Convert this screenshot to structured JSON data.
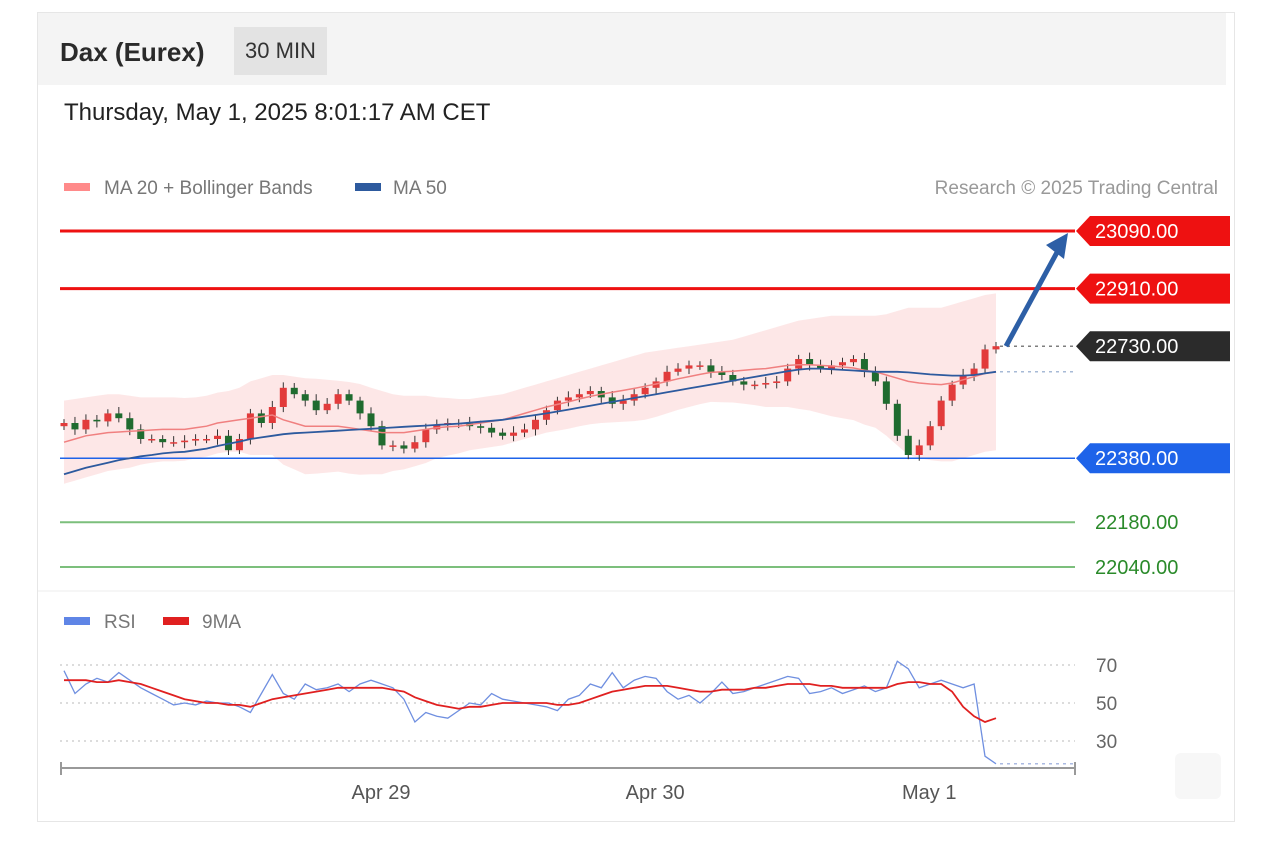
{
  "header": {
    "title": "Dax (Eurex)",
    "interval": "30 MIN"
  },
  "timestamp": "Thursday, May 1, 2025 8:01:17 AM CET",
  "legend": {
    "ma20": "MA 20 + Bollinger Bands",
    "ma50": "MA 50",
    "rsi": "RSI",
    "rsi_ma": "9MA",
    "credit": "Research © 2025 Trading Central"
  },
  "colors": {
    "resistance": "#ee1111",
    "current": "#2b2b2b",
    "pivot": "#1e63e9",
    "support": "#7cbf7c",
    "support_text": "#2a8a2a",
    "ma20": "#f08080",
    "ma50": "#2d5a9e",
    "bands": "#fde3e3",
    "rsi": "#6f8fe0",
    "rsi_ma": "#e02020",
    "up": "#e23b3b",
    "down": "#1f6b2f",
    "arrow": "#2d5fa6"
  },
  "chart_data": [
    {
      "type": "candlestick",
      "ylim": [
        21985,
        23150
      ],
      "levels": [
        {
          "name": "resistance-2",
          "value": 23090,
          "label": "23090.00"
        },
        {
          "name": "resistance-1",
          "value": 22910,
          "label": "22910.00"
        },
        {
          "name": "current",
          "value": 22730,
          "label": "22730.00"
        },
        {
          "name": "pivot",
          "value": 22380,
          "label": "22380.00"
        },
        {
          "name": "support-1",
          "value": 22180,
          "label": "22180.00"
        },
        {
          "name": "support-2",
          "value": 22040,
          "label": "22040.00"
        }
      ],
      "x_ticks": [
        {
          "label": "Apr 29",
          "index": 28
        },
        {
          "label": "Apr 30",
          "index": 53
        },
        {
          "label": "May 1",
          "index": 78
        }
      ],
      "num_periods": 86,
      "close": [
        22490,
        22470,
        22500,
        22495,
        22520,
        22505,
        22470,
        22440,
        22440,
        22430,
        22430,
        22435,
        22440,
        22440,
        22450,
        22405,
        22440,
        22520,
        22490,
        22540,
        22600,
        22580,
        22560,
        22530,
        22550,
        22580,
        22560,
        22520,
        22480,
        22420,
        22420,
        22410,
        22430,
        22470,
        22485,
        22490,
        22490,
        22480,
        22475,
        22460,
        22450,
        22460,
        22470,
        22500,
        22530,
        22560,
        22570,
        22580,
        22590,
        22570,
        22550,
        22560,
        22580,
        22600,
        22620,
        22650,
        22660,
        22670,
        22670,
        22650,
        22640,
        22620,
        22610,
        22610,
        22615,
        22620,
        22660,
        22690,
        22670,
        22660,
        22670,
        22680,
        22690,
        22650,
        22620,
        22550,
        22450,
        22390,
        22420,
        22480,
        22560,
        22610,
        22640,
        22660,
        22720,
        22730
      ],
      "ma20": [
        22430,
        22440,
        22450,
        22455,
        22460,
        22462,
        22464,
        22466,
        22468,
        22470,
        22470,
        22470,
        22475,
        22480,
        22490,
        22495,
        22500,
        22505,
        22510,
        22515,
        22500,
        22490,
        22480,
        22480,
        22480,
        22480,
        22475,
        22470,
        22465,
        22460,
        22460,
        22460,
        22465,
        22470,
        22475,
        22478,
        22480,
        22485,
        22490,
        22495,
        22500,
        22510,
        22520,
        22530,
        22540,
        22548,
        22556,
        22565,
        22573,
        22580,
        22586,
        22592,
        22598,
        22605,
        22612,
        22620,
        22628,
        22635,
        22642,
        22648,
        22650,
        22652,
        22655,
        22658,
        22660,
        22665,
        22670,
        22672,
        22672,
        22670,
        22668,
        22665,
        22662,
        22655,
        22650,
        22640,
        22630,
        22620,
        22615,
        22612,
        22610,
        22615,
        22625,
        22635,
        22645,
        22650
      ],
      "ma50": [
        22330,
        22340,
        22350,
        22358,
        22366,
        22374,
        22380,
        22386,
        22390,
        22395,
        22398,
        22400,
        22405,
        22410,
        22418,
        22425,
        22432,
        22440,
        22445,
        22450,
        22455,
        22458,
        22460,
        22462,
        22464,
        22466,
        22468,
        22470,
        22472,
        22474,
        22476,
        22478,
        22480,
        22482,
        22484,
        22486,
        22488,
        22491,
        22494,
        22497,
        22500,
        22505,
        22510,
        22515,
        22520,
        22526,
        22532,
        22538,
        22544,
        22550,
        22556,
        22562,
        22568,
        22574,
        22580,
        22586,
        22592,
        22598,
        22604,
        22610,
        22616,
        22622,
        22628,
        22634,
        22640,
        22646,
        22652,
        22657,
        22660,
        22660,
        22658,
        22656,
        22654,
        22652,
        22650,
        22650,
        22650,
        22648,
        22645,
        22642,
        22640,
        22638,
        22638,
        22640,
        22645,
        22650
      ],
      "band_upper": [
        22560,
        22565,
        22570,
        22575,
        22580,
        22580,
        22575,
        22570,
        22570,
        22570,
        22570,
        22568,
        22570,
        22575,
        22585,
        22590,
        22600,
        22620,
        22630,
        22640,
        22640,
        22635,
        22630,
        22628,
        22625,
        22622,
        22618,
        22612,
        22600,
        22590,
        22580,
        22575,
        22575,
        22575,
        22570,
        22568,
        22565,
        22565,
        22570,
        22575,
        22580,
        22590,
        22600,
        22610,
        22620,
        22630,
        22640,
        22650,
        22660,
        22670,
        22680,
        22690,
        22700,
        22710,
        22715,
        22720,
        22725,
        22730,
        22735,
        22740,
        22745,
        22750,
        22760,
        22770,
        22780,
        22790,
        22800,
        22810,
        22815,
        22820,
        22825,
        22825,
        22825,
        22825,
        22825,
        22830,
        22840,
        22850,
        22850,
        22850,
        22850,
        22860,
        22870,
        22880,
        22890,
        22895
      ],
      "band_lower": [
        22300,
        22310,
        22320,
        22330,
        22340,
        22345,
        22350,
        22360,
        22366,
        22370,
        22370,
        22372,
        22380,
        22385,
        22395,
        22400,
        22400,
        22390,
        22390,
        22390,
        22360,
        22345,
        22330,
        22332,
        22335,
        22338,
        22332,
        22328,
        22330,
        22330,
        22340,
        22345,
        22355,
        22365,
        22380,
        22388,
        22395,
        22405,
        22410,
        22415,
        22420,
        22430,
        22440,
        22450,
        22460,
        22466,
        22472,
        22480,
        22486,
        22490,
        22492,
        22494,
        22496,
        22500,
        22509,
        22520,
        22531,
        22540,
        22549,
        22556,
        22555,
        22554,
        22550,
        22546,
        22540,
        22540,
        22540,
        22534,
        22529,
        22520,
        22511,
        22505,
        22499,
        22485,
        22475,
        22450,
        22420,
        22390,
        22380,
        22374,
        22370,
        22370,
        22380,
        22390,
        22400,
        22405
      ],
      "arrow": {
        "from_index": 85,
        "from_value": 22730,
        "to_value": 23090
      }
    },
    {
      "type": "line",
      "ylim": [
        15,
        80
      ],
      "yticks": [
        70,
        50,
        30
      ],
      "series": [
        {
          "name": "RSI",
          "values": [
            67,
            55,
            60,
            63,
            61,
            66,
            62,
            58,
            55,
            52,
            49,
            50,
            49,
            51,
            50,
            50,
            48,
            45,
            55,
            65,
            55,
            52,
            60,
            57,
            58,
            60,
            56,
            60,
            62,
            60,
            58,
            52,
            40,
            45,
            43,
            42,
            46,
            50,
            49,
            55,
            52,
            51,
            50,
            49,
            48,
            46,
            52,
            54,
            60,
            58,
            66,
            58,
            62,
            64,
            63,
            56,
            52,
            54,
            50,
            55,
            61,
            55,
            56,
            58,
            60,
            62,
            64,
            63,
            55,
            56,
            58,
            55,
            57,
            59,
            56,
            58,
            72,
            68,
            58,
            60,
            62,
            60,
            58,
            60,
            22,
            18
          ]
        },
        {
          "name": "9MA",
          "values": [
            62,
            62,
            62,
            61,
            61,
            62,
            61,
            60,
            58,
            56,
            54,
            52,
            51,
            50,
            50,
            49,
            49,
            48,
            50,
            52,
            53,
            54,
            55,
            56,
            57,
            58,
            58,
            58,
            58,
            58,
            57,
            56,
            53,
            51,
            49,
            48,
            47,
            48,
            48,
            49,
            50,
            50,
            50,
            50,
            50,
            49,
            49,
            50,
            52,
            54,
            56,
            57,
            58,
            59,
            59,
            59,
            58,
            57,
            56,
            56,
            57,
            57,
            57,
            58,
            58,
            59,
            60,
            60,
            60,
            59,
            59,
            58,
            58,
            58,
            58,
            58,
            60,
            61,
            61,
            60,
            60,
            56,
            48,
            43,
            40,
            42
          ]
        }
      ]
    }
  ]
}
